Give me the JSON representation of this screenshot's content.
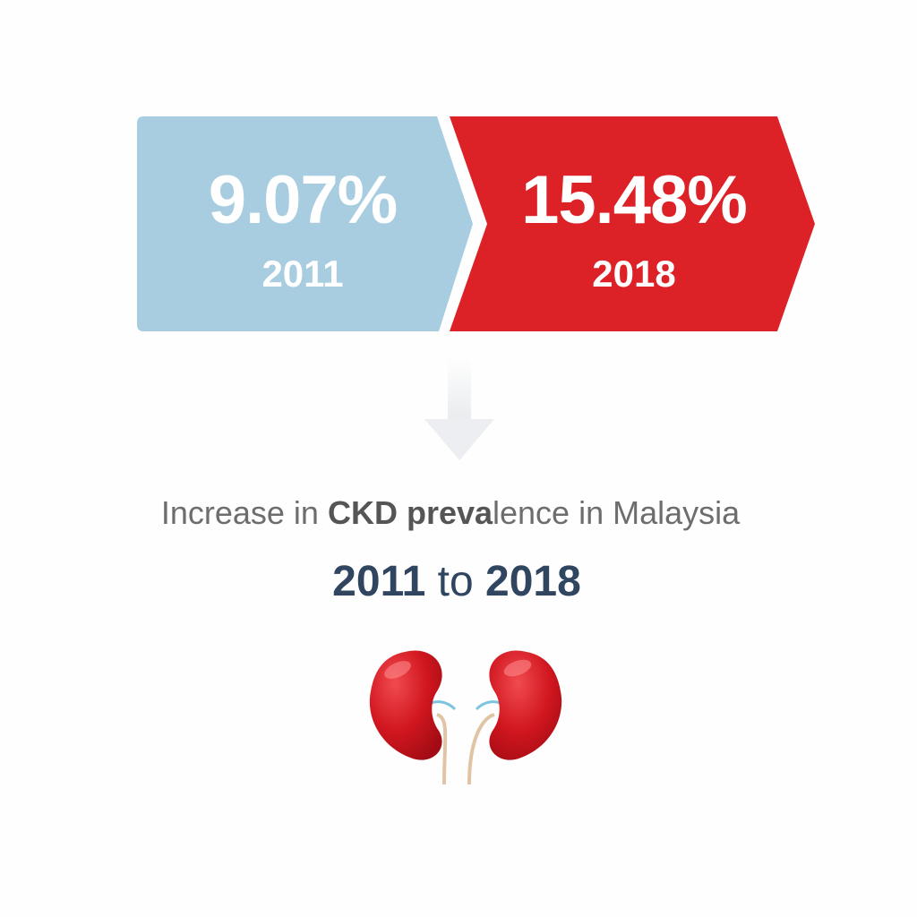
{
  "stat_2011": {
    "value": "9.07%",
    "year": "2011"
  },
  "stat_2018": {
    "value": "15.48%",
    "year": "2018"
  },
  "caption": {
    "part1": "Increase in ",
    "emphasis": "CKD preva",
    "part2": "lence in Malaysia"
  },
  "range": {
    "start": "2011",
    "connector": "to",
    "end": "2018"
  },
  "colors": {
    "panel_2011": "#a8cde0",
    "panel_2018": "#dc2127",
    "arrow": "#eceef1",
    "caption_text": "#6d6d6d",
    "range_text": "#2f4560",
    "kidney": "#d1161f"
  },
  "icons": [
    "arrow-down-icon",
    "kidneys-icon"
  ]
}
